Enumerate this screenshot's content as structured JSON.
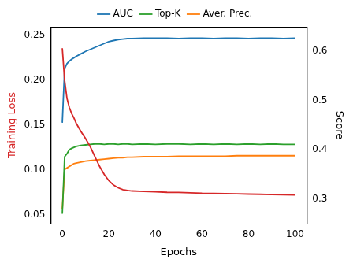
{
  "chart_data": {
    "type": "line",
    "x_label": "Epochs",
    "y_label": "Training Loss",
    "y2_label": "Score",
    "x": [
      0,
      1,
      2,
      3,
      4,
      5,
      6,
      8,
      10,
      12,
      14,
      16,
      18,
      20,
      22,
      24,
      26,
      28,
      30,
      35,
      40,
      45,
      50,
      55,
      60,
      65,
      70,
      75,
      80,
      85,
      90,
      95,
      100
    ],
    "xlim": [
      -5,
      105
    ],
    "xticks": [
      0,
      20,
      40,
      60,
      80,
      100
    ],
    "ylim": [
      0.04,
      0.26
    ],
    "yticks": [
      0.05,
      {
        "value": 0.1,
        "label": "0.10"
      },
      0.15,
      {
        "value": 0.2,
        "label": "0.20"
      },
      0.25
    ],
    "y2lim": [
      0.25,
      0.65
    ],
    "y2ticks": [
      0.3,
      0.4,
      0.5,
      0.6
    ],
    "legend": "top",
    "grid": false,
    "series": [
      {
        "name": "Training Loss",
        "color": "#d62728",
        "axis": "y",
        "values": [
          0.236,
          0.2,
          0.18,
          0.17,
          0.163,
          0.158,
          0.152,
          0.143,
          0.135,
          0.126,
          0.115,
          0.104,
          0.095,
          0.088,
          0.083,
          0.08,
          0.078,
          0.077,
          0.0765,
          0.076,
          0.0755,
          0.075,
          0.0748,
          0.0745,
          0.074,
          0.0738,
          0.0735,
          0.0733,
          0.073,
          0.0728,
          0.0725,
          0.0722,
          0.072
        ]
      },
      {
        "name": "AUC",
        "color": "#1f77b4",
        "axis": "y2",
        "values": [
          0.455,
          0.565,
          0.575,
          0.58,
          0.584,
          0.587,
          0.59,
          0.595,
          0.6,
          0.604,
          0.608,
          0.612,
          0.616,
          0.62,
          0.622,
          0.624,
          0.625,
          0.626,
          0.626,
          0.627,
          0.627,
          0.627,
          0.626,
          0.627,
          0.627,
          0.626,
          0.627,
          0.627,
          0.626,
          0.627,
          0.627,
          0.626,
          0.627
        ]
      },
      {
        "name": "Top-K",
        "color": "#2ca02c",
        "axis": "y2",
        "values": [
          0.27,
          0.386,
          0.392,
          0.4,
          0.403,
          0.405,
          0.407,
          0.409,
          0.41,
          0.411,
          0.412,
          0.412,
          0.411,
          0.412,
          0.412,
          0.411,
          0.412,
          0.412,
          0.411,
          0.412,
          0.411,
          0.412,
          0.412,
          0.411,
          0.412,
          0.411,
          0.412,
          0.411,
          0.412,
          0.411,
          0.412,
          0.411,
          0.411
        ]
      },
      {
        "name": "Aver. Prec.",
        "color": "#ff7f0e",
        "axis": "y2",
        "values": [
          0.28,
          0.36,
          0.363,
          0.366,
          0.369,
          0.372,
          0.373,
          0.375,
          0.377,
          0.378,
          0.379,
          0.38,
          0.381,
          0.382,
          0.383,
          0.384,
          0.384,
          0.385,
          0.385,
          0.386,
          0.386,
          0.386,
          0.387,
          0.387,
          0.387,
          0.387,
          0.387,
          0.388,
          0.388,
          0.388,
          0.388,
          0.388,
          0.388
        ]
      }
    ]
  }
}
